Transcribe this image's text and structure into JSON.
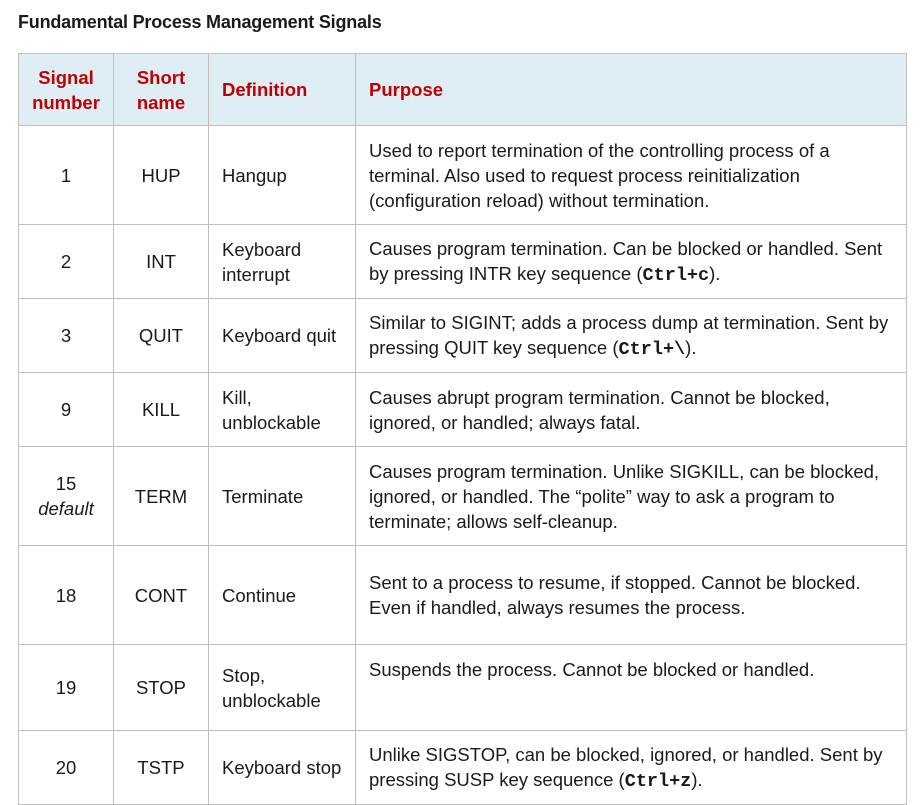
{
  "title": "Fundamental Process Management Signals",
  "headers": {
    "signal_number": "Signal number",
    "short_name": "Short name",
    "definition": "Definition",
    "purpose": "Purpose"
  },
  "rows": [
    {
      "number": "1",
      "short": "HUP",
      "definition": "Hangup",
      "purpose": "Used to report termination of the controlling process of a terminal. Also used to request process reinitialization (configuration reload) without termination."
    },
    {
      "number": "2",
      "short": "INT",
      "definition": "Keyboard interrupt",
      "purpose": "Causes program termination. Can be blocked or handled. Sent by pressing INTR key sequence (",
      "key": "Ctrl+c",
      "purpose_end": ")."
    },
    {
      "number": "3",
      "short": "QUIT",
      "definition": "Keyboard quit",
      "purpose": "Similar to SIGINT; adds a process dump at termination. Sent by pressing QUIT key sequence (",
      "key": "Ctrl+\\",
      "purpose_end": ")."
    },
    {
      "number": "9",
      "short": "KILL",
      "definition": "Kill, unblockable",
      "purpose": "Causes abrupt program termination. Cannot be blocked, ignored, or handled; always fatal."
    },
    {
      "number": "15",
      "sub": "default",
      "short": "TERM",
      "definition": "Terminate",
      "purpose": "Causes program termination. Unlike SIGKILL, can be blocked, ignored, or handled. The “polite” way to ask a program to terminate; allows self-cleanup."
    },
    {
      "number": "18",
      "short": "CONT",
      "definition": "Continue",
      "purpose": "Sent to a process to resume, if stopped. Cannot be blocked. Even if handled, always resumes the process."
    },
    {
      "number": "19",
      "short": "STOP",
      "definition": "Stop, unblockable",
      "purpose": "Suspends the process. Cannot be blocked or handled."
    },
    {
      "number": "20",
      "short": "TSTP",
      "definition": "Keyboard stop",
      "purpose": "Unlike SIGSTOP, can be blocked, ignored, or handled. Sent by pressing SUSP key sequence (",
      "key": "Ctrl+z",
      "purpose_end": ")."
    }
  ]
}
